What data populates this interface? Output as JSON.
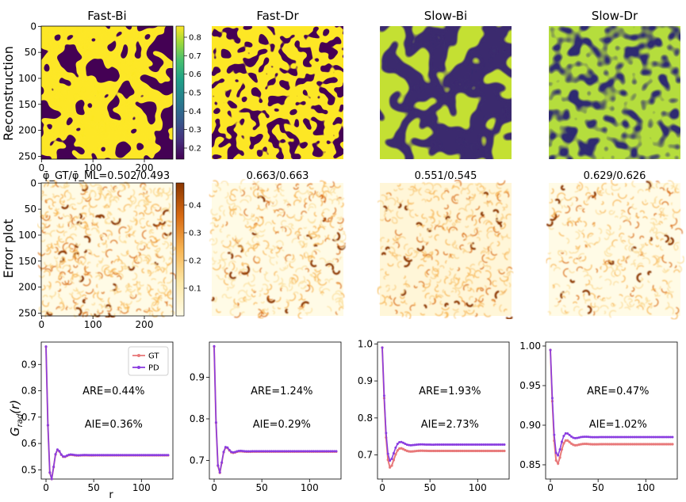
{
  "row_labels": [
    "Reconstruction",
    "Error plot",
    "G_rad(r)"
  ],
  "columns": [
    {
      "title": "Fast-Bi",
      "error_title": "φ̄_GT/φ̄_ML=0.502/0.493",
      "kind": "bi",
      "fast": true
    },
    {
      "title": "Fast-Dr",
      "error_title": "0.663/0.663",
      "kind": "dr",
      "fast": true
    },
    {
      "title": "Slow-Bi",
      "error_title": "0.551/0.545",
      "kind": "bi",
      "fast": false
    },
    {
      "title": "Slow-Dr",
      "error_title": "0.629/0.626",
      "kind": "dr",
      "fast": false
    }
  ],
  "image_axis": {
    "y_ticks": [
      "0",
      "50",
      "100",
      "150",
      "200",
      "250"
    ],
    "x_ticks": [
      "0",
      "100",
      "200"
    ]
  },
  "colorbars": [
    {
      "ticks": [
        "0.8",
        "0.7",
        "0.6",
        "0.5",
        "0.4",
        "0.3",
        "0.2"
      ],
      "range": [
        0.14,
        0.86
      ],
      "cmap": "viridis"
    },
    {
      "ticks": [
        "0.4",
        "0.3",
        "0.2",
        "0.1"
      ],
      "range": [
        0.0,
        0.48
      ],
      "cmap": "ylorbr"
    }
  ],
  "colors": {
    "gt": "#e8797a",
    "pd": "#8a3de0",
    "viridis_low": "#440154",
    "viridis_high": "#fde725",
    "error_low": "#fffbe6",
    "error_high": "#8a3600"
  },
  "chart_data": [
    {
      "type": "line",
      "xlabel": "r",
      "ylabel": "G_rad(r)",
      "xlim": [
        -5,
        133
      ],
      "ylim": [
        0.465,
        0.985
      ],
      "x_ticks": [
        0,
        50,
        100
      ],
      "y_ticks": [
        0.5,
        0.6,
        0.7,
        0.8,
        0.9
      ],
      "legend": [
        "GT",
        "PD"
      ],
      "legend_position": "top-right",
      "annotations": [
        "ARE=0.44%",
        "AIE=0.36%"
      ],
      "osc": {
        "amp": -0.5,
        "decay": 7.0,
        "period": 15,
        "offset": 0.556,
        "peak": 0.968
      }
    },
    {
      "type": "line",
      "xlabel": "",
      "ylabel": "",
      "xlim": [
        -5,
        133
      ],
      "ylim": [
        0.655,
        0.985
      ],
      "x_ticks": [
        0,
        50,
        100
      ],
      "y_ticks": [
        0.7,
        0.8,
        0.9
      ],
      "legend": [],
      "annotations": [
        "ARE=1.24%",
        "AIE=0.29%"
      ],
      "osc": {
        "amp": -0.35,
        "decay": 6.5,
        "period": 16,
        "offset": 0.722,
        "peak": 0.975
      }
    },
    {
      "type": "line",
      "xlabel": "",
      "ylabel": "",
      "xlim": [
        -5,
        133
      ],
      "ylim": [
        0.635,
        1.005
      ],
      "x_ticks": [
        0,
        50,
        100
      ],
      "y_ticks": [
        0.7,
        0.8,
        0.9,
        1.0
      ],
      "legend": [],
      "annotations": [
        "ARE=1.93%",
        "AIE=2.73%"
      ],
      "osc": {
        "amp": -0.27,
        "decay": 9.0,
        "period": 24,
        "offset": 0.728,
        "peak": 0.99
      },
      "osc_gt": {
        "amp": -0.26,
        "decay": 9.0,
        "period": 24,
        "offset": 0.711,
        "peak": 0.99
      }
    },
    {
      "type": "line",
      "xlabel": "",
      "ylabel": "",
      "xlim": [
        -5,
        133
      ],
      "ylim": [
        0.832,
        1.005
      ],
      "x_ticks": [
        0,
        50,
        100
      ],
      "y_ticks": [
        0.85,
        0.9,
        0.95,
        1.0
      ],
      "legend": [],
      "annotations": [
        "ARE=0.47%",
        "AIE=1.02%"
      ],
      "osc": {
        "amp": -0.14,
        "decay": 9.0,
        "period": 21,
        "offset": 0.885,
        "peak": 0.995
      },
      "osc_gt": {
        "amp": -0.14,
        "decay": 9.0,
        "period": 21,
        "offset": 0.876,
        "peak": 0.995
      }
    }
  ]
}
